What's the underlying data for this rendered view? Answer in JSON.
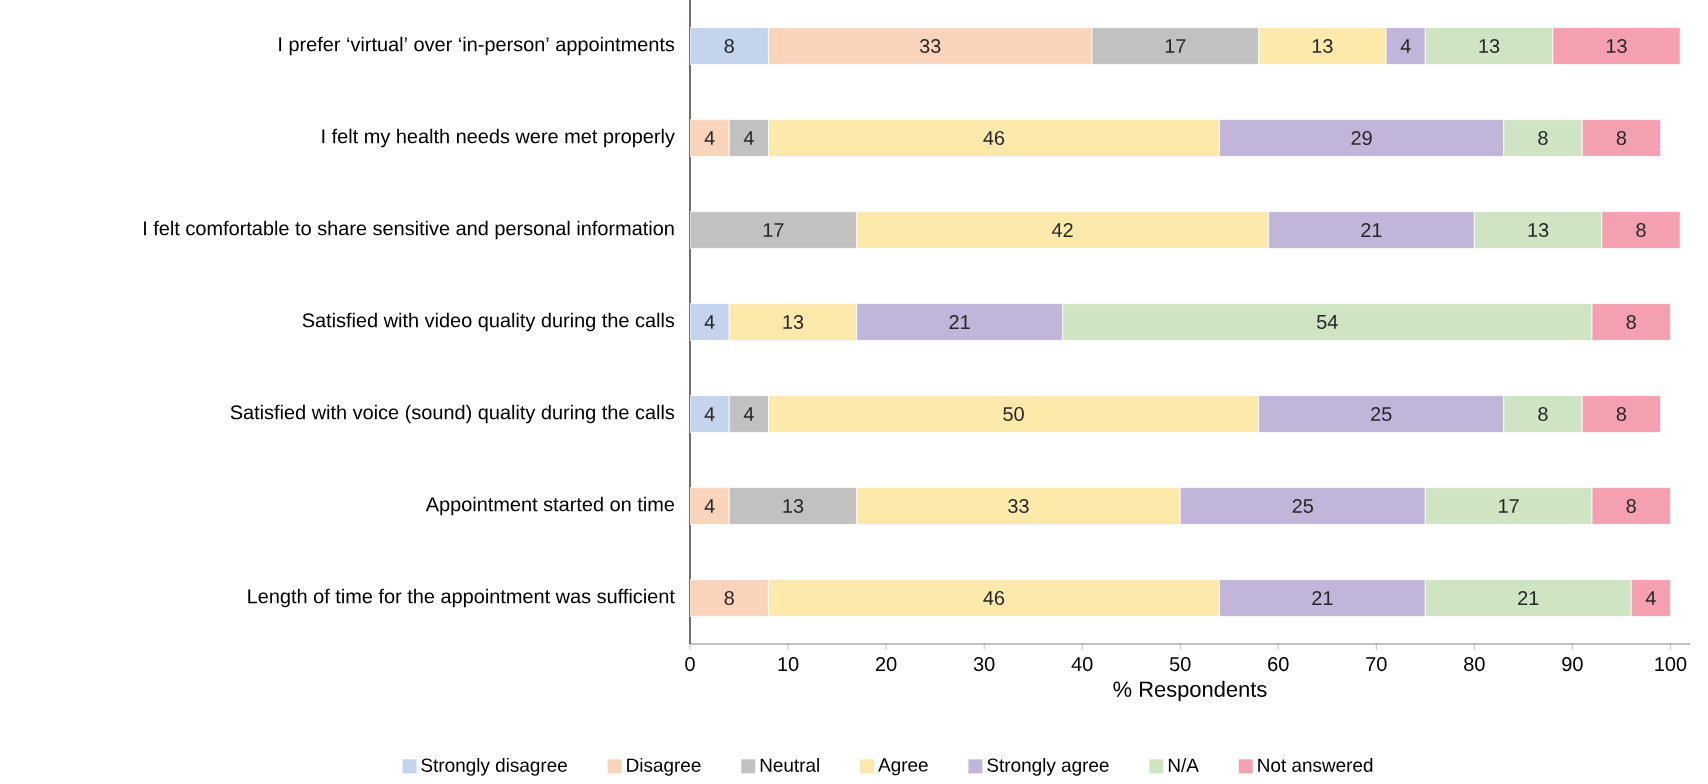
{
  "chart_data": {
    "type": "bar",
    "orientation": "horizontal",
    "stacked": true,
    "data_labels": true,
    "legend": "bottom",
    "grid": false,
    "xlabel": "% Respondents",
    "categories": [
      "I prefer ‘virtual’ over ‘in-person’ appointments",
      "I felt my health needs were met properly",
      "I felt comfortable to share sensitive and personal information",
      "Satisfied with video quality during the calls",
      "Satisfied with voice (sound) quality during the calls",
      "Appointment started on time",
      "Length of time for the appointment was sufficient"
    ],
    "xlim": [
      0,
      102
    ],
    "xticks": [
      0,
      10,
      20,
      30,
      40,
      50,
      60,
      70,
      80,
      90,
      100
    ],
    "series": [
      {
        "name": "Strongly disagree",
        "color": "#c3d4ec",
        "values": [
          8,
          null,
          null,
          4,
          4,
          null,
          null
        ]
      },
      {
        "name": "Disagree",
        "color": "#f9d4bb",
        "values": [
          33,
          4,
          null,
          null,
          null,
          4,
          8
        ]
      },
      {
        "name": "Neutral",
        "color": "#c1c1c1",
        "values": [
          17,
          4,
          17,
          null,
          4,
          13,
          null
        ]
      },
      {
        "name": "Agree",
        "color": "#fde9a9",
        "values": [
          13,
          46,
          42,
          13,
          50,
          33,
          46
        ]
      },
      {
        "name": "Strongly agree",
        "color": "#c2b5da",
        "values": [
          4,
          29,
          21,
          21,
          25,
          25,
          21
        ]
      },
      {
        "name": "N/A",
        "color": "#cfe4c3",
        "values": [
          13,
          8,
          13,
          54,
          8,
          17,
          21
        ]
      },
      {
        "name": "Not answered",
        "color": "#f5a0b1",
        "values": [
          13,
          8,
          8,
          8,
          8,
          8,
          4
        ]
      }
    ]
  }
}
